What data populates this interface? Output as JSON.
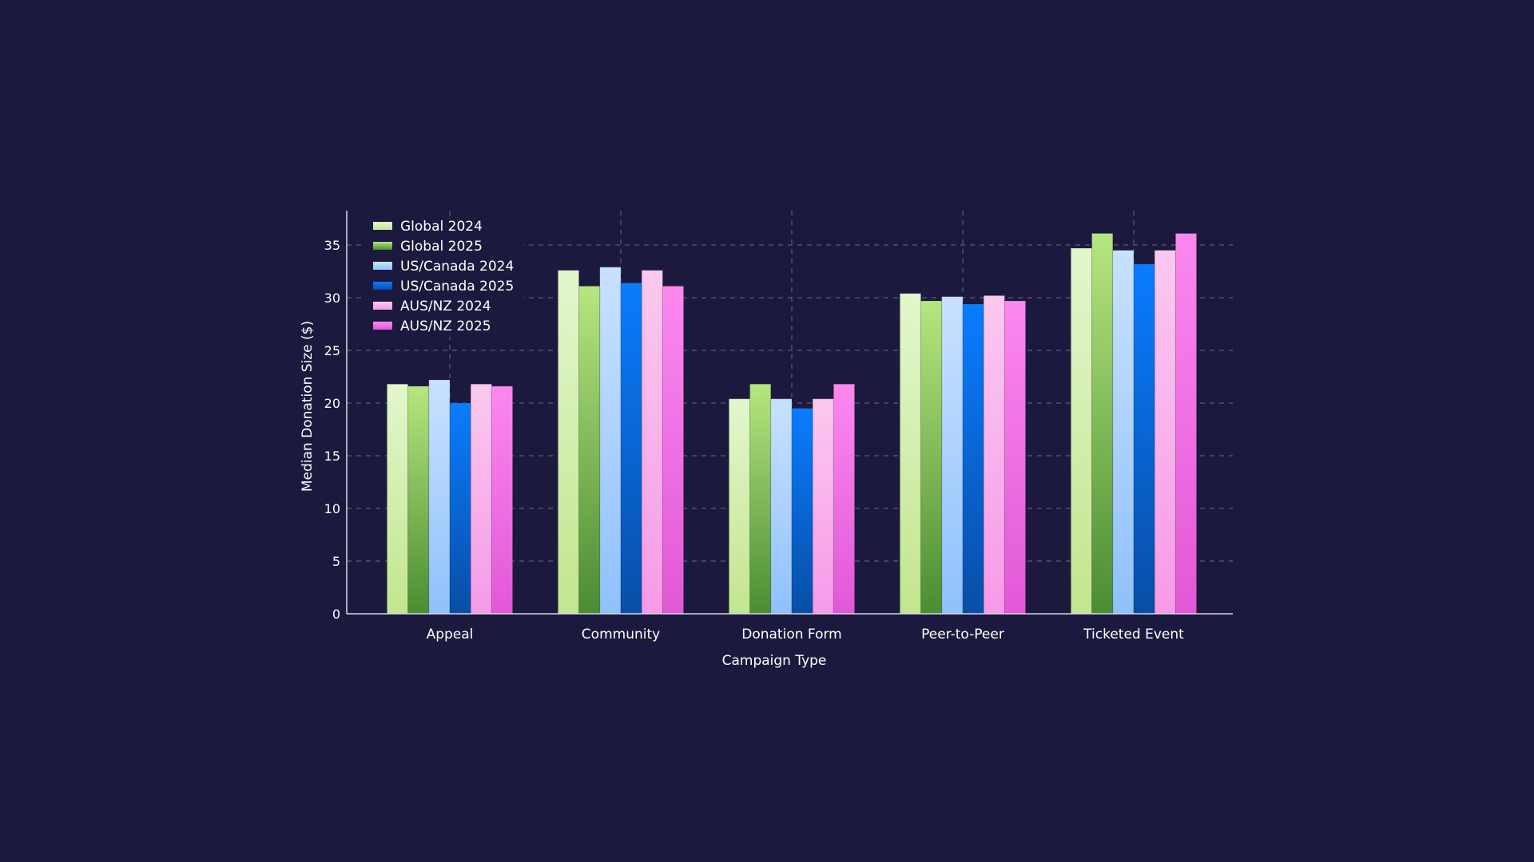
{
  "chart_data": {
    "type": "bar",
    "title": "",
    "xlabel": "Campaign Type",
    "ylabel": "Median Donation Size ($)",
    "ylim": [
      0,
      37
    ],
    "yticks": [
      0,
      5,
      10,
      15,
      20,
      25,
      30,
      35
    ],
    "grid": true,
    "legend_position": "top-left",
    "categories": [
      "Appeal",
      "Community",
      "Donation Form",
      "Peer-to-Peer",
      "Ticketed Event"
    ],
    "series": [
      {
        "name": "Global 2024",
        "values": [
          21.8,
          32.6,
          20.4,
          30.4,
          34.7
        ],
        "colors": [
          "#e3f6cd",
          "#c2e68e"
        ]
      },
      {
        "name": "Global 2025",
        "values": [
          21.6,
          31.1,
          21.8,
          29.7,
          36.1
        ],
        "colors": [
          "#b6e67f",
          "#4b8c33"
        ]
      },
      {
        "name": "US/Canada 2024",
        "values": [
          22.2,
          32.9,
          20.4,
          30.1,
          34.5
        ],
        "colors": [
          "#c9e1ff",
          "#8fc1fb"
        ]
      },
      {
        "name": "US/Canada 2025",
        "values": [
          20.0,
          31.4,
          19.5,
          29.4,
          33.2
        ],
        "colors": [
          "#0a7cff",
          "#084ea6"
        ]
      },
      {
        "name": "AUS/NZ 2024",
        "values": [
          21.8,
          32.6,
          20.4,
          30.2,
          34.5
        ],
        "colors": [
          "#fbc9ef",
          "#f79ae8"
        ]
      },
      {
        "name": "AUS/NZ 2025",
        "values": [
          21.6,
          31.1,
          21.8,
          29.7,
          36.1
        ],
        "colors": [
          "#fb88ef",
          "#e258d7"
        ]
      }
    ]
  },
  "colors": {
    "background": "#1b1a3e",
    "grid": "#5d5c7e",
    "axis": "#d8d8e4"
  }
}
